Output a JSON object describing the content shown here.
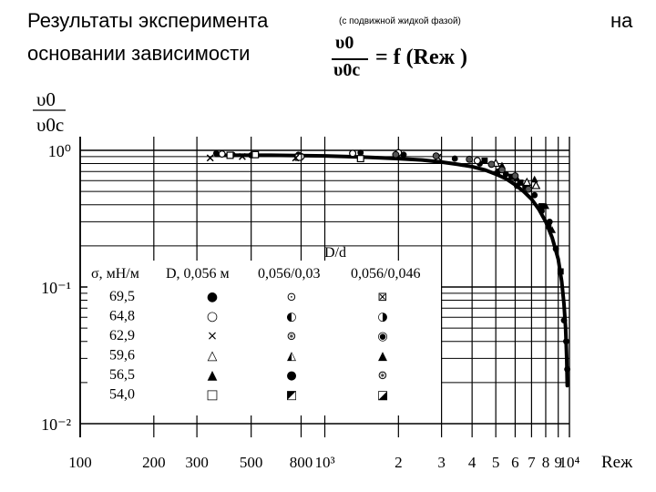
{
  "header": {
    "line1_left": "Результаты эксперимента",
    "line1_paren": "(с   подвижной   жидкой   фазой)",
    "line1_right": "на",
    "line2": "основании зависимости",
    "formula_num": "υ0",
    "formula_den": "υ0c",
    "formula_rhs": "= f (Reж )"
  },
  "chart_data": {
    "type": "scatter",
    "title": "",
    "xlabel": "Reж",
    "ylabel_num": "υ0",
    "ylabel_den": "υ0c",
    "x_scale": "log",
    "y_scale": "log",
    "xlim": [
      100,
      10000
    ],
    "ylim": [
      0.01,
      1
    ],
    "x_ticks": [
      {
        "v": 100,
        "label": "100"
      },
      {
        "v": 200,
        "label": "200"
      },
      {
        "v": 300,
        "label": "300"
      },
      {
        "v": 500,
        "label": "500"
      },
      {
        "v": 800,
        "label": "800"
      },
      {
        "v": 1000,
        "label": "10³"
      },
      {
        "v": 2000,
        "label": "2"
      },
      {
        "v": 3000,
        "label": "3"
      },
      {
        "v": 4000,
        "label": "4"
      },
      {
        "v": 5000,
        "label": "5"
      },
      {
        "v": 6000,
        "label": "6"
      },
      {
        "v": 7000,
        "label": "7"
      },
      {
        "v": 8000,
        "label": "8"
      },
      {
        "v": 9000,
        "label": "9"
      },
      {
        "v": 10000,
        "label": "10⁴"
      }
    ],
    "y_ticks": [
      {
        "v": 1,
        "label": "10⁰"
      },
      {
        "v": 0.1,
        "label": "10⁻¹"
      },
      {
        "v": 0.01,
        "label": "10⁻²"
      }
    ],
    "legend": {
      "header_sigma": "σ, мН/м",
      "header_col1": "D, 0,056 м",
      "header_col2": "0,056/0,03",
      "header_col3": "0,056/0,046",
      "group_label": "D/d",
      "rows": [
        {
          "sigma": "69,5",
          "m1": "●",
          "m2": "⊙",
          "m3": "⊠"
        },
        {
          "sigma": "64,8",
          "m1": "○",
          "m2": "◐",
          "m3": "◑"
        },
        {
          "sigma": "62,9",
          "m1": "×",
          "m2": "⊛",
          "m3": "◉"
        },
        {
          "sigma": "59,6",
          "m1": "△",
          "m2": "◭",
          "m3": "▲"
        },
        {
          "sigma": "56,5",
          "m1": "▲",
          "m2": "●",
          "m3": "⊛"
        },
        {
          "sigma": "54,0",
          "m1": "□",
          "m2": "◩",
          "m3": "◪"
        }
      ]
    },
    "curve": {
      "x": [
        360,
        600,
        1000,
        1500,
        2000,
        2500,
        3000,
        3500,
        4000,
        4500,
        5000,
        5500,
        6000,
        6500,
        7000,
        7500,
        8000,
        8500,
        9000,
        9300,
        9500,
        9650,
        9750,
        9800
      ],
      "y": [
        0.92,
        0.92,
        0.91,
        0.89,
        0.87,
        0.85,
        0.82,
        0.79,
        0.76,
        0.72,
        0.67,
        0.62,
        0.56,
        0.5,
        0.44,
        0.37,
        0.3,
        0.23,
        0.16,
        0.11,
        0.075,
        0.05,
        0.03,
        0.019
      ]
    },
    "series": [
      {
        "marker": "filled-circle",
        "x": [
          360,
          420,
          500,
          780,
          1400,
          2100,
          3400,
          4300,
          5100,
          5500,
          6100,
          6600,
          7200,
          7700,
          8300,
          8800,
          9500,
          9700,
          9800
        ],
        "y": [
          0.95,
          0.93,
          0.92,
          0.93,
          0.96,
          0.93,
          0.87,
          0.8,
          0.7,
          0.67,
          0.55,
          0.54,
          0.47,
          0.36,
          0.3,
          0.19,
          0.057,
          0.04,
          0.025
        ]
      },
      {
        "marker": "open-circle",
        "x": [
          380,
          800,
          1300,
          2000,
          4200
        ],
        "y": [
          0.94,
          0.9,
          0.95,
          0.96,
          0.84
        ]
      },
      {
        "marker": "open-square",
        "x": [
          410,
          520,
          780,
          1400
        ],
        "y": [
          0.92,
          0.93,
          0.89,
          0.87
        ]
      },
      {
        "marker": "cross",
        "x": [
          340,
          460,
          760,
          2900
        ],
        "y": [
          0.88,
          0.9,
          0.88,
          0.89
        ]
      },
      {
        "marker": "open-triangle",
        "x": [
          5000,
          6700,
          7300
        ],
        "y": [
          0.8,
          0.58,
          0.55
        ]
      },
      {
        "marker": "filled-triangle",
        "x": [
          5300,
          6100,
          7200,
          8000,
          8500
        ],
        "y": [
          0.77,
          0.62,
          0.61,
          0.39,
          0.26
        ]
      },
      {
        "marker": "filled-square",
        "x": [
          4500,
          5800,
          6300,
          7700,
          8200,
          9200
        ],
        "y": [
          0.84,
          0.64,
          0.58,
          0.39,
          0.28,
          0.13
        ]
      },
      {
        "marker": "half-circle",
        "x": [
          1950,
          2850,
          3900,
          4800,
          5300,
          6000,
          6800
        ],
        "y": [
          0.93,
          0.91,
          0.86,
          0.79,
          0.72,
          0.65,
          0.52
        ]
      }
    ]
  }
}
